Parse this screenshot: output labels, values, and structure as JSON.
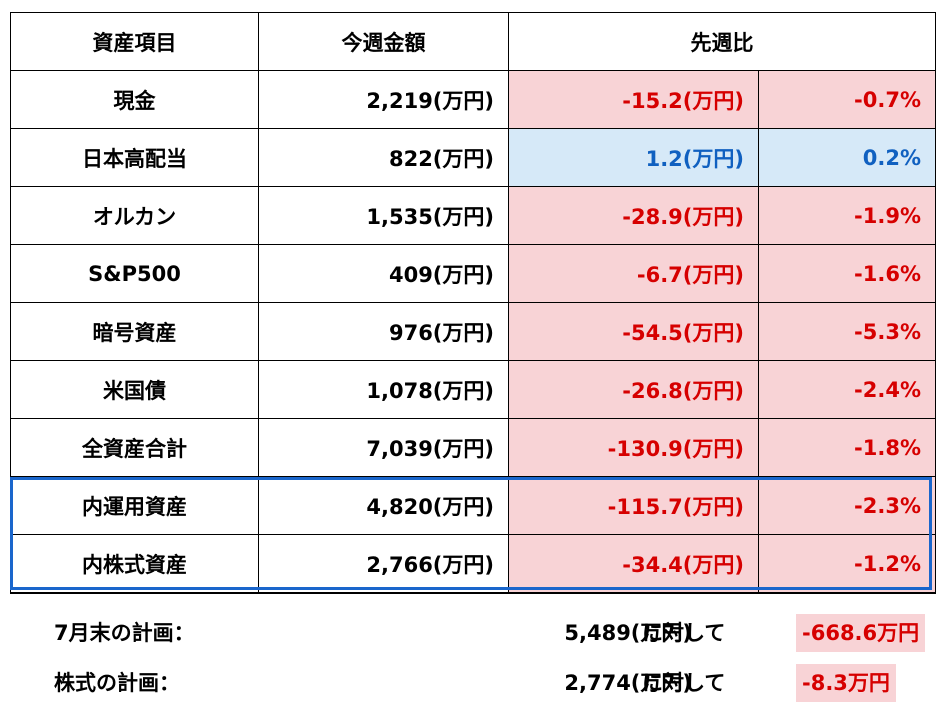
{
  "table": {
    "headers": [
      "資産項目",
      "今週金額",
      "先週比"
    ],
    "rows": [
      {
        "name": "現金",
        "amount": "2,219(万円)",
        "change": "-15.2(万円)",
        "pct": "-0.7%",
        "trend": "neg"
      },
      {
        "name": "日本高配当",
        "amount": "822(万円)",
        "change": "1.2(万円)",
        "pct": "0.2%",
        "trend": "pos"
      },
      {
        "name": "オルカン",
        "amount": "1,535(万円)",
        "change": "-28.9(万円)",
        "pct": "-1.9%",
        "trend": "neg"
      },
      {
        "name": "S&P500",
        "amount": "409(万円)",
        "change": "-6.7(万円)",
        "pct": "-1.6%",
        "trend": "neg"
      },
      {
        "name": "暗号資産",
        "amount": "976(万円)",
        "change": "-54.5(万円)",
        "pct": "-5.3%",
        "trend": "neg"
      },
      {
        "name": "米国債",
        "amount": "1,078(万円)",
        "change": "-26.8(万円)",
        "pct": "-2.4%",
        "trend": "neg"
      },
      {
        "name": "全資産合計",
        "amount": "7,039(万円)",
        "change": "-130.9(万円)",
        "pct": "-1.8%",
        "trend": "neg"
      },
      {
        "name": "内運用資産",
        "amount": "4,820(万円)",
        "change": "-115.7(万円)",
        "pct": "-2.3%",
        "trend": "neg"
      },
      {
        "name": "内株式資産",
        "amount": "2,766(万円)",
        "change": "-34.4(万円)",
        "pct": "-1.2%",
        "trend": "neg"
      }
    ]
  },
  "plans": [
    {
      "label": "7月末の計画：",
      "amount": "5,489(万円)",
      "suffix": "に対して",
      "diff": "-668.6万円"
    },
    {
      "label": "株式の計画：",
      "amount": "2,774(万円)",
      "suffix": "に対して",
      "diff": "-8.3万円"
    }
  ],
  "colors": {
    "negative_text": "#d60000",
    "negative_bg": "#f8d3d6",
    "positive_text": "#1060c0",
    "positive_bg": "#d6e9f8",
    "highlight_border": "#1a66cc"
  }
}
